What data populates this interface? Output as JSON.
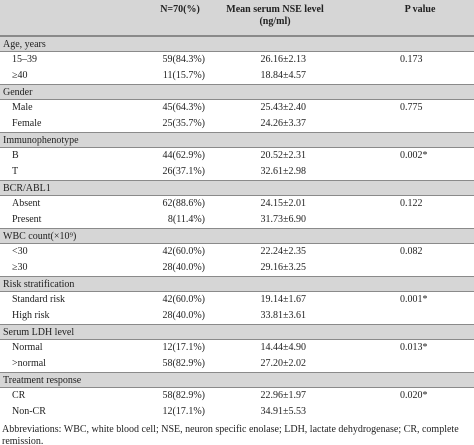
{
  "table": {
    "header": [
      "N=70(%)",
      "Mean serum NSE level (ng/ml)",
      "P value"
    ],
    "sections": [
      {
        "label": "Age, years",
        "rows": [
          {
            "label": "15–39",
            "n": "59(84.3%)",
            "mean": "26.16±2.13",
            "p": "0.173"
          },
          {
            "label": "≥40",
            "n": "11(15.7%)",
            "mean": "18.84±4.57"
          }
        ]
      },
      {
        "label": "Gender",
        "rows": [
          {
            "label": "Male",
            "n": "45(64.3%)",
            "mean": "25.43±2.40",
            "p": "0.775"
          },
          {
            "label": "Female",
            "n": "25(35.7%)",
            "mean": "24.26±3.37"
          }
        ]
      },
      {
        "label": "Immunophenotype",
        "rows": [
          {
            "label": "B",
            "n": "44(62.9%)",
            "mean": "20.52±2.31",
            "p": "0.002*"
          },
          {
            "label": "T",
            "n": "26(37.1%)",
            "mean": "32.61±2.98"
          }
        ]
      },
      {
        "label": "BCR/ABL1",
        "rows": [
          {
            "label": "Absent",
            "n": "62(88.6%)",
            "mean": "24.15±2.01",
            "p": "0.122"
          },
          {
            "label": "Present",
            "n": "8(11.4%)",
            "mean": "31.73±6.90"
          }
        ]
      },
      {
        "label": "WBC count(×10⁹)",
        "rows": [
          {
            "label": "<30",
            "n": "42(60.0%)",
            "mean": "22.24±2.35",
            "p": "0.082"
          },
          {
            "label": "≥30",
            "n": "28(40.0%)",
            "mean": "29.16±3.25"
          }
        ]
      },
      {
        "label": "Risk stratification",
        "rows": [
          {
            "label": "Standard risk",
            "n": "42(60.0%)",
            "mean": "19.14±1.67",
            "p": "0.001*"
          },
          {
            "label": "High risk",
            "n": "28(40.0%)",
            "mean": "33.81±3.61"
          }
        ]
      },
      {
        "label": "Serum LDH level",
        "rows": [
          {
            "label": "Normal",
            "n": "12(17.1%)",
            "mean": "14.44±4.90",
            "p": "0.013*"
          },
          {
            "label": ">normal",
            "n": "58(82.9%)",
            "mean": "27.20±2.02"
          }
        ]
      },
      {
        "label": "Treatment response",
        "rows": [
          {
            "label": "CR",
            "n": "58(82.9%)",
            "mean": "22.96±1.97",
            "p": "0.020*"
          },
          {
            "label": "Non-CR",
            "n": "12(17.1%)",
            "mean": "34.91±5.53"
          }
        ]
      }
    ],
    "footnote": "Abbreviations: WBC, white blood cell; NSE, neuron specific enolase; LDH, lactate dehydrogenase; CR, complete remission."
  }
}
